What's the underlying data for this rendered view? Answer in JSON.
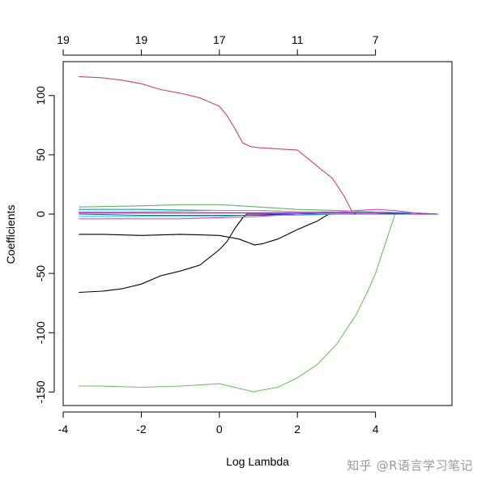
{
  "chart_data": {
    "type": "line",
    "title": "",
    "xlabel": "Log Lambda",
    "ylabel": "Coefficients",
    "xlim": [
      -4,
      6
    ],
    "ylim": [
      -160,
      130
    ],
    "x_ticks": [
      -4,
      -2,
      0,
      2,
      4
    ],
    "y_ticks": [
      -150,
      -100,
      -50,
      0,
      50,
      100
    ],
    "top_axis": {
      "positions": [
        -4,
        -2,
        0,
        2,
        4
      ],
      "labels": [
        "19",
        "19",
        "17",
        "11",
        "7"
      ]
    },
    "grid": false,
    "series": [
      {
        "color": "#c8446a",
        "x": [
          -3.6,
          -3.0,
          -2.5,
          -2.0,
          -1.5,
          -1.0,
          -0.5,
          0.0,
          0.2,
          0.4,
          0.6,
          0.8,
          1.0,
          1.5,
          2.0,
          2.3,
          2.6,
          2.9,
          3.2,
          3.4,
          3.5,
          4.0,
          4.5,
          5.0,
          5.6
        ],
        "y": [
          116,
          115,
          113,
          110,
          105,
          102,
          98,
          91,
          83,
          72,
          60,
          57,
          56,
          55,
          54,
          46,
          38,
          30,
          15,
          2,
          0,
          0,
          0,
          0,
          0
        ]
      },
      {
        "color": "#6fc163",
        "x": [
          -3.6,
          -3.0,
          -2.0,
          -1.0,
          0.0,
          0.5,
          0.9,
          1.0,
          1.5,
          2.0,
          2.5,
          3.0,
          3.5,
          3.8,
          4.0,
          4.2,
          4.4,
          4.45,
          4.5,
          5.0,
          5.6
        ],
        "y": [
          -145,
          -145,
          -146,
          -145,
          -143,
          -147,
          -150,
          -149,
          -146,
          -138,
          -127,
          -110,
          -85,
          -65,
          -50,
          -30,
          -10,
          -5,
          0,
          0,
          0
        ]
      },
      {
        "color": "#000000",
        "x": [
          -3.6,
          -3.0,
          -2.5,
          -2.0,
          -1.5,
          -1.0,
          -0.5,
          0.0,
          0.2,
          0.4,
          0.6,
          0.7,
          0.8,
          1.0,
          1.5,
          2.0,
          2.3,
          2.6,
          2.8,
          3.0,
          4.0,
          5.0,
          5.6
        ],
        "y": [
          -66,
          -65,
          -63,
          -59,
          -52,
          -48,
          -43,
          -30,
          -23,
          -12,
          -3,
          0,
          0,
          0,
          0,
          0,
          0,
          0,
          0,
          0,
          0,
          0,
          0
        ]
      },
      {
        "color": "#000000",
        "x": [
          -3.6,
          -3.0,
          -2.0,
          -1.0,
          0.0,
          0.5,
          0.9,
          1.1,
          1.5,
          2.0,
          2.5,
          2.8,
          3.0,
          4.0,
          5.0,
          5.6
        ],
        "y": [
          -17,
          -17,
          -18,
          -17,
          -18,
          -21,
          -26,
          -25,
          -21,
          -13,
          -6,
          0,
          0,
          0,
          0,
          0
        ]
      },
      {
        "color": "#63b36f",
        "x": [
          -3.6,
          -2.0,
          -1.0,
          0.0,
          1.0,
          2.0,
          3.0,
          4.0,
          5.0,
          5.6
        ],
        "y": [
          6,
          7,
          8,
          8,
          6,
          4,
          3,
          2,
          1,
          0
        ]
      },
      {
        "color": "#1f8fbf",
        "x": [
          -3.6,
          -2.0,
          0.0,
          1.0,
          2.0,
          3.0,
          4.0,
          5.0,
          5.6
        ],
        "y": [
          4,
          4,
          3,
          3,
          2,
          2,
          1,
          1,
          0
        ]
      },
      {
        "color": "#d64bd6",
        "x": [
          -3.6,
          -2.0,
          -1.0,
          0.0,
          1.0,
          2.0,
          3.0,
          4.0,
          4.5,
          5.0,
          5.6
        ],
        "y": [
          -4,
          -4,
          -4,
          -3,
          -2,
          0,
          2,
          4,
          3,
          1,
          0
        ]
      },
      {
        "color": "#9e9e9e",
        "x": [
          -3.6,
          -2.0,
          0.0,
          1.0,
          2.0,
          3.0,
          4.0,
          5.0,
          5.6
        ],
        "y": [
          2,
          2,
          3,
          3,
          2,
          2,
          1,
          0,
          0
        ]
      },
      {
        "color": "#22d3d3",
        "x": [
          -3.6,
          -2.0,
          0.0,
          0.6,
          1.0,
          2.0,
          3.0,
          4.0,
          5.0,
          5.6
        ],
        "y": [
          -2,
          -2,
          -2,
          -1,
          -1,
          -1,
          0,
          0,
          0,
          0
        ]
      },
      {
        "color": "#2c4fd1",
        "x": [
          -3.6,
          -2.0,
          0.0,
          1.0,
          2.0,
          3.0,
          4.0,
          5.0,
          5.6
        ],
        "y": [
          0,
          -1,
          -1,
          -1,
          0,
          0,
          0,
          0,
          0
        ]
      },
      {
        "color": "#7a1fa0",
        "x": [
          -3.6,
          -2.0,
          0.0,
          1.0,
          2.0,
          3.0,
          4.0,
          5.0,
          5.6
        ],
        "y": [
          1,
          1,
          1,
          1,
          1,
          1,
          1,
          0,
          0
        ]
      }
    ]
  },
  "watermark": "知乎 @R语言学习笔记"
}
